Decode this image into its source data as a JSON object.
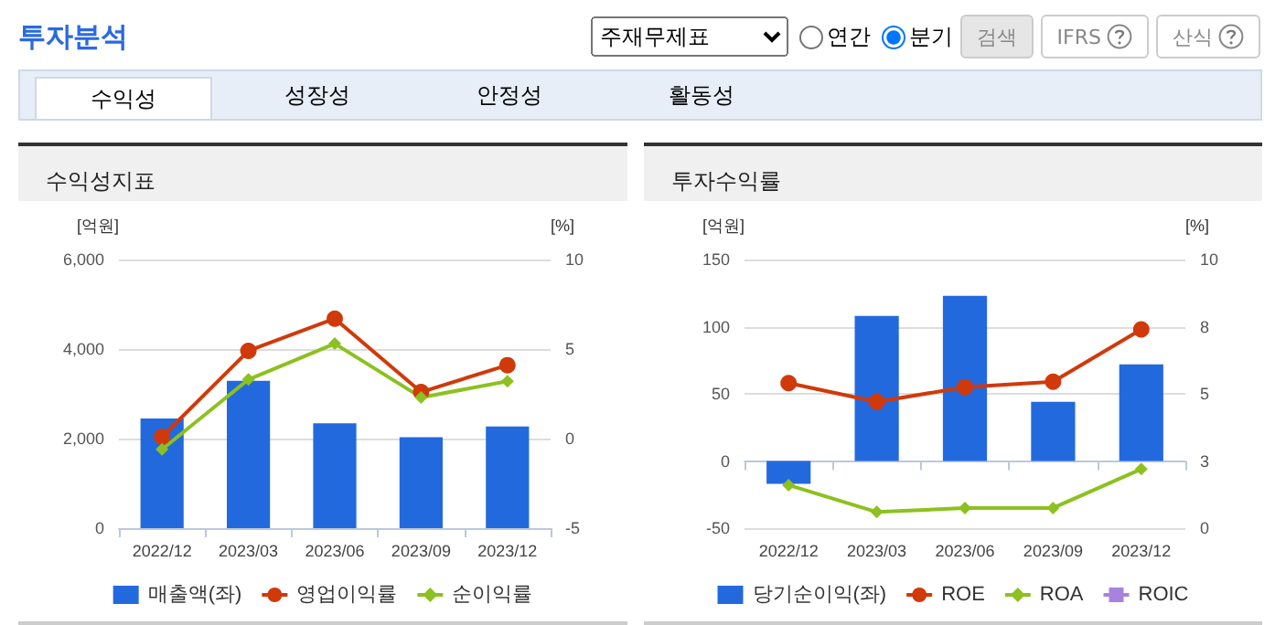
{
  "chart_data": [
    {
      "type": "bar",
      "title": "수익성지표",
      "ylabel": "[억원]",
      "y2label": "[%]",
      "categories": [
        "2022/12",
        "2023/03",
        "2023/06",
        "2023/09",
        "2023/12"
      ],
      "annotations": [
        "투자분석",
        "주재무제표",
        "연간",
        "분기",
        "검색",
        "IFRS",
        "산식",
        "수익성",
        "성장성",
        "안정성",
        "활동성"
      ],
      "series": [
        {
          "name": "매출액(좌)",
          "color": "#2369de",
          "values": [
            2450,
            3290,
            2340,
            2030,
            2270
          ]
        },
        {
          "name": "영업이익률",
          "type": "line",
          "axis": "y2",
          "marker": "circle",
          "color": "#d03a0b",
          "values": [
            0.1,
            4.9,
            6.7,
            2.6,
            4.1
          ]
        },
        {
          "name": "순이익률",
          "type": "line",
          "axis": "y2",
          "marker": "diamond",
          "color": "#8cc11f",
          "values": [
            -0.6,
            3.3,
            5.3,
            2.3,
            3.2
          ]
        }
      ],
      "ylim": [
        0,
        6000
      ],
      "yticks": [
        0,
        {
          "value": 2000,
          "label": "2,000"
        },
        {
          "value": 4000,
          "label": "4,000"
        },
        {
          "value": 6000,
          "label": "6,000"
        }
      ],
      "y2lim": [
        -5,
        10
      ],
      "y2ticks": [
        -5,
        0,
        5,
        10
      ],
      "grid": "y",
      "legend": "bottom"
    },
    {
      "type": "bar",
      "title": "투자수익률",
      "ylabel": "[억원]",
      "y2label": "[%]",
      "categories": [
        "2022/12",
        "2023/03",
        "2023/06",
        "2023/09",
        "2023/12"
      ],
      "series": [
        {
          "name": "당기순이익(좌)",
          "color": "#2369de",
          "values": [
            -17,
            108,
            123,
            44,
            72
          ]
        },
        {
          "name": "ROE",
          "type": "line",
          "axis": "y2",
          "marker": "circle",
          "color": "#d03a0b",
          "values": [
            5.4,
            4.7,
            5.25,
            5.45,
            7.4
          ]
        },
        {
          "name": "ROA",
          "type": "line",
          "axis": "y2",
          "marker": "diamond",
          "color": "#8cc11f",
          "values": [
            1.6,
            0.6,
            0.75,
            0.75,
            2.2
          ]
        },
        {
          "name": "ROIC",
          "type": "line",
          "axis": "y2",
          "marker": "square",
          "color": "#a783dd",
          "values": [
            null,
            null,
            null,
            null,
            null
          ]
        }
      ],
      "ylim": [
        -50,
        150
      ],
      "yticks": [
        -50,
        0,
        50,
        100,
        150
      ],
      "y2lim": [
        0,
        10
      ],
      "y2ticks": [
        0,
        {
          "value": 2.5,
          "label": "3"
        },
        5,
        {
          "value": 7.5,
          "label": "8"
        },
        10
      ],
      "grid": "y",
      "legend": "bottom"
    }
  ]
}
